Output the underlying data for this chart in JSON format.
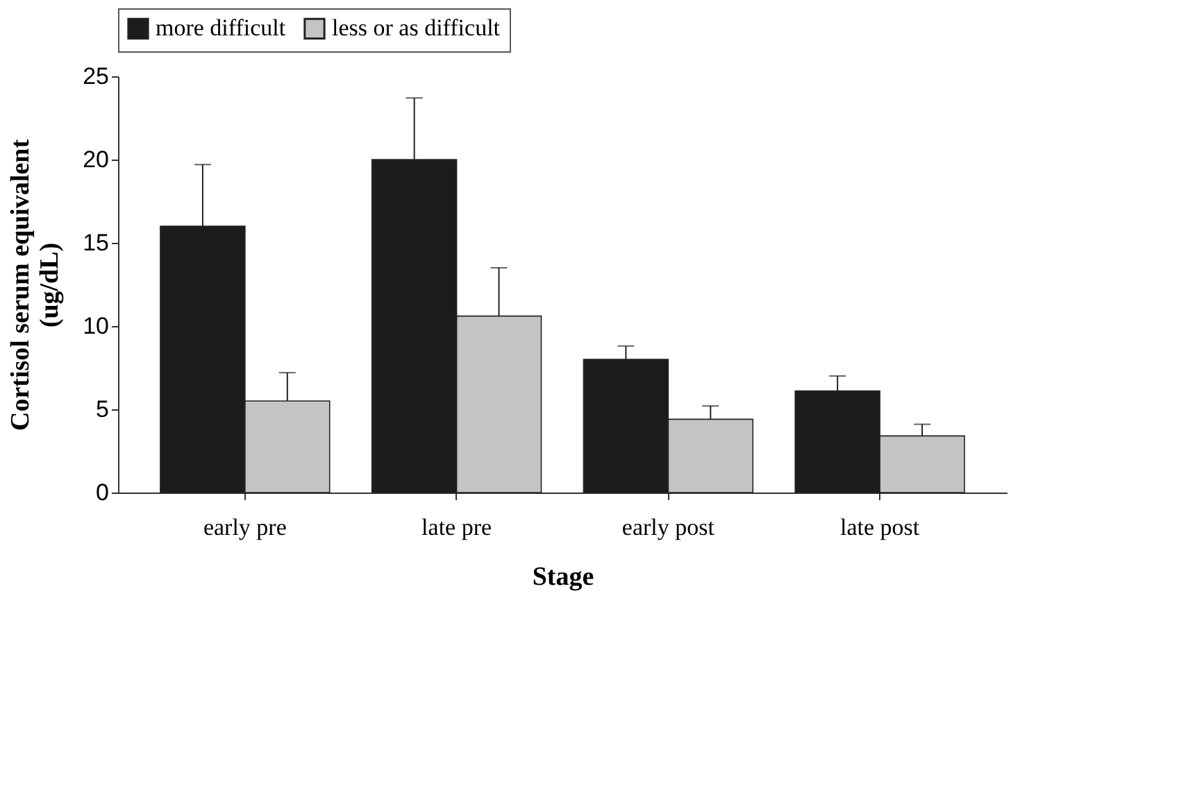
{
  "chart_data": {
    "type": "bar",
    "xlabel": "Stage",
    "ylabel": "Cortisol serum equivalent\n(ug/dL)",
    "categories": [
      "early pre",
      "late pre",
      "early post",
      "late post"
    ],
    "series": [
      {
        "name": "more difficult",
        "color": "#1c1c1c",
        "values": [
          16.0,
          20.0,
          8.0,
          6.1
        ],
        "errors": [
          [
            16.0,
            19.7
          ],
          [
            20.0,
            23.7
          ],
          [
            8.0,
            8.8
          ],
          [
            6.1,
            7.0
          ]
        ]
      },
      {
        "name": "less or as difficult",
        "color": "#c4c4c4",
        "values": [
          5.5,
          10.6,
          4.4,
          3.4
        ],
        "errors": [
          [
            5.5,
            7.2
          ],
          [
            10.6,
            13.5
          ],
          [
            4.4,
            5.2
          ],
          [
            3.4,
            4.1
          ]
        ]
      }
    ],
    "ylim": [
      0,
      25
    ],
    "yticks": [
      0,
      5,
      10,
      15,
      20,
      25
    ],
    "grid": false,
    "legend": "top"
  }
}
